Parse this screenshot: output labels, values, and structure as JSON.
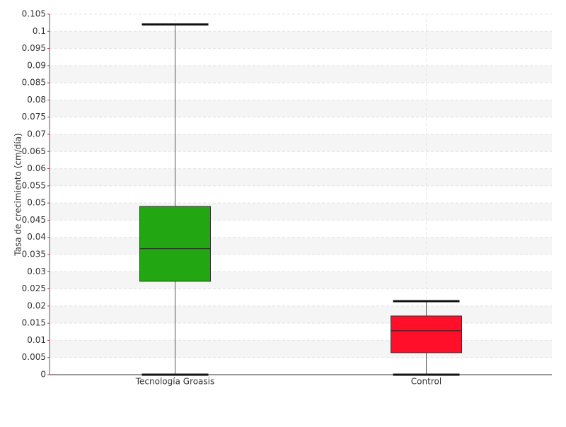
{
  "chart_data": {
    "type": "box",
    "y_label": "Tasa de crecimiento (cm/día)",
    "categories": [
      "Tecnología Groasis",
      "Control"
    ],
    "colors": [
      "#22a612",
      "#ff0f2a"
    ],
    "boxes": [
      {
        "min": 0,
        "q1": 0.0272,
        "median": 0.0367,
        "q3": 0.049,
        "max": 0.102
      },
      {
        "min": 0,
        "q1": 0.0064,
        "median": 0.0128,
        "q3": 0.0171,
        "max": 0.0214
      }
    ],
    "ylim": [
      0,
      0.105
    ],
    "yticks": [
      0,
      0.005,
      0.01,
      0.015,
      0.02,
      0.025,
      0.03,
      0.035,
      0.04,
      0.045,
      0.05,
      0.055,
      0.06,
      0.065,
      0.07,
      0.075,
      0.08,
      0.085,
      0.09,
      0.095,
      0.1,
      0.105
    ],
    "grid": true
  }
}
